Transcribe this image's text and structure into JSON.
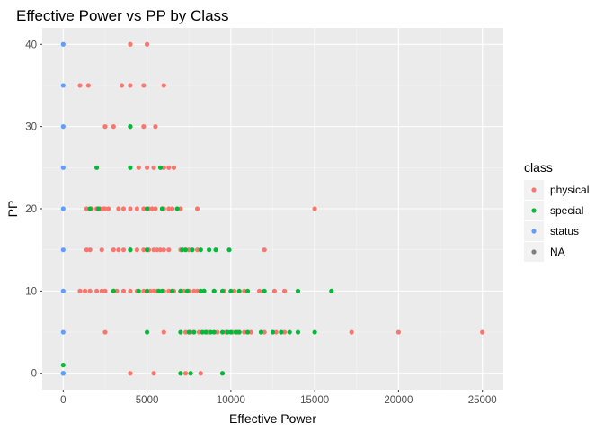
{
  "chart_data": {
    "type": "scatter",
    "title": "Effective Power vs PP by Class",
    "xlabel": "Effective Power",
    "ylabel": "PP",
    "xlim": [
      -1250,
      26250
    ],
    "ylim": [
      -2,
      42
    ],
    "x_ticks": [
      0,
      5000,
      10000,
      15000,
      20000,
      25000
    ],
    "y_ticks": [
      0,
      10,
      20,
      30,
      40
    ],
    "grid": true,
    "legend_position": "right",
    "legend_title": "class",
    "series": [
      {
        "name": "physical",
        "color": "#F8766D",
        "points": [
          [
            4000,
            40
          ],
          [
            5000,
            40
          ],
          [
            1000,
            35
          ],
          [
            1500,
            35
          ],
          [
            3500,
            35
          ],
          [
            4000,
            35
          ],
          [
            4800,
            35
          ],
          [
            6000,
            35
          ],
          [
            2500,
            30
          ],
          [
            3000,
            30
          ],
          [
            4000,
            30
          ],
          [
            4800,
            30
          ],
          [
            5500,
            30
          ],
          [
            4500,
            25
          ],
          [
            5000,
            25
          ],
          [
            5400,
            25
          ],
          [
            6000,
            25
          ],
          [
            6300,
            25
          ],
          [
            6600,
            25
          ],
          [
            1400,
            20
          ],
          [
            1700,
            20
          ],
          [
            2000,
            20
          ],
          [
            2200,
            20
          ],
          [
            2400,
            20
          ],
          [
            2500,
            20
          ],
          [
            2700,
            20
          ],
          [
            3300,
            20
          ],
          [
            3600,
            20
          ],
          [
            4000,
            20
          ],
          [
            4400,
            20
          ],
          [
            4800,
            20
          ],
          [
            5100,
            20
          ],
          [
            5300,
            20
          ],
          [
            5500,
            20
          ],
          [
            6000,
            20
          ],
          [
            6300,
            20
          ],
          [
            6500,
            20
          ],
          [
            7000,
            20
          ],
          [
            8000,
            20
          ],
          [
            15000,
            20
          ],
          [
            1400,
            15
          ],
          [
            1600,
            15
          ],
          [
            2300,
            15
          ],
          [
            3000,
            15
          ],
          [
            3300,
            15
          ],
          [
            3600,
            15
          ],
          [
            4000,
            15
          ],
          [
            4400,
            15
          ],
          [
            4800,
            15
          ],
          [
            5100,
            15
          ],
          [
            5400,
            15
          ],
          [
            5600,
            15
          ],
          [
            5800,
            15
          ],
          [
            6000,
            15
          ],
          [
            6300,
            15
          ],
          [
            7000,
            15
          ],
          [
            7500,
            15
          ],
          [
            8000,
            15
          ],
          [
            12000,
            15
          ],
          [
            1000,
            10
          ],
          [
            1300,
            10
          ],
          [
            1600,
            10
          ],
          [
            2000,
            10
          ],
          [
            2300,
            10
          ],
          [
            2500,
            10
          ],
          [
            3000,
            10
          ],
          [
            3200,
            10
          ],
          [
            3600,
            10
          ],
          [
            4000,
            10
          ],
          [
            4400,
            10
          ],
          [
            4800,
            10
          ],
          [
            5200,
            10
          ],
          [
            5400,
            10
          ],
          [
            5600,
            10
          ],
          [
            6000,
            10
          ],
          [
            6300,
            10
          ],
          [
            6600,
            10
          ],
          [
            7000,
            10
          ],
          [
            7200,
            10
          ],
          [
            7500,
            10
          ],
          [
            7800,
            10
          ],
          [
            8000,
            10
          ],
          [
            8400,
            10
          ],
          [
            9000,
            10
          ],
          [
            9600,
            10
          ],
          [
            10200,
            10
          ],
          [
            10800,
            10
          ],
          [
            11700,
            10
          ],
          [
            12600,
            10
          ],
          [
            13200,
            10
          ],
          [
            2500,
            5
          ],
          [
            6000,
            5
          ],
          [
            7300,
            5
          ],
          [
            7600,
            5
          ],
          [
            8100,
            5
          ],
          [
            8600,
            5
          ],
          [
            9200,
            5
          ],
          [
            9700,
            5
          ],
          [
            10100,
            5
          ],
          [
            10400,
            5
          ],
          [
            10800,
            5
          ],
          [
            11200,
            5
          ],
          [
            12000,
            5
          ],
          [
            12700,
            5
          ],
          [
            13200,
            5
          ],
          [
            17200,
            5
          ],
          [
            20000,
            5
          ],
          [
            25000,
            5
          ],
          [
            4000,
            0
          ],
          [
            5400,
            0
          ],
          [
            7300,
            0
          ],
          [
            8200,
            0
          ]
        ]
      },
      {
        "name": "special",
        "color": "#00BA38",
        "points": [
          [
            4000,
            30
          ],
          [
            2000,
            25
          ],
          [
            4000,
            25
          ],
          [
            5800,
            25
          ],
          [
            1600,
            20
          ],
          [
            2100,
            20
          ],
          [
            5000,
            20
          ],
          [
            5900,
            20
          ],
          [
            6800,
            20
          ],
          [
            4000,
            15
          ],
          [
            5000,
            15
          ],
          [
            7100,
            15
          ],
          [
            7300,
            15
          ],
          [
            7700,
            15
          ],
          [
            8200,
            15
          ],
          [
            8700,
            15
          ],
          [
            9100,
            15
          ],
          [
            9900,
            15
          ],
          [
            3000,
            10
          ],
          [
            4500,
            10
          ],
          [
            5000,
            10
          ],
          [
            5700,
            10
          ],
          [
            5900,
            10
          ],
          [
            6500,
            10
          ],
          [
            7000,
            10
          ],
          [
            7400,
            10
          ],
          [
            8200,
            10
          ],
          [
            8400,
            10
          ],
          [
            9000,
            10
          ],
          [
            9500,
            10
          ],
          [
            10000,
            10
          ],
          [
            10500,
            10
          ],
          [
            11000,
            10
          ],
          [
            12000,
            10
          ],
          [
            14000,
            10
          ],
          [
            16000,
            10
          ],
          [
            5000,
            5
          ],
          [
            7000,
            5
          ],
          [
            7500,
            5
          ],
          [
            7800,
            5
          ],
          [
            8300,
            5
          ],
          [
            8500,
            5
          ],
          [
            8800,
            5
          ],
          [
            9000,
            5
          ],
          [
            9500,
            5
          ],
          [
            9800,
            5
          ],
          [
            10000,
            5
          ],
          [
            10300,
            5
          ],
          [
            10500,
            5
          ],
          [
            11000,
            5
          ],
          [
            11800,
            5
          ],
          [
            12500,
            5
          ],
          [
            13000,
            5
          ],
          [
            13500,
            5
          ],
          [
            14000,
            5
          ],
          [
            15000,
            5
          ],
          [
            0,
            1
          ],
          [
            0,
            0
          ],
          [
            7000,
            0
          ],
          [
            7600,
            0
          ],
          [
            9500,
            0
          ]
        ]
      },
      {
        "name": "status",
        "color": "#619CFF",
        "points": [
          [
            0,
            40
          ],
          [
            0,
            35
          ],
          [
            0,
            30
          ],
          [
            0,
            25
          ],
          [
            0,
            20
          ],
          [
            0,
            15
          ],
          [
            0,
            10
          ],
          [
            0,
            5
          ],
          [
            0,
            0
          ]
        ]
      },
      {
        "name": "NA",
        "color": "#7F7F7F",
        "points": []
      }
    ]
  }
}
